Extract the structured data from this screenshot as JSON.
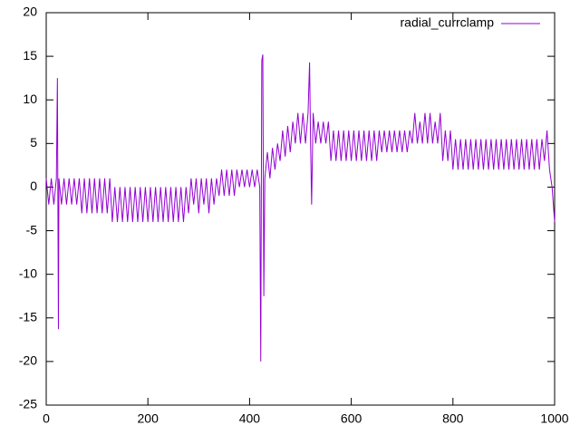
{
  "chart_data": {
    "type": "line",
    "x": [
      0,
      5,
      10,
      15,
      20,
      22,
      24,
      25,
      30,
      35,
      40,
      45,
      50,
      55,
      60,
      65,
      70,
      75,
      80,
      85,
      90,
      95,
      100,
      105,
      110,
      115,
      120,
      125,
      130,
      135,
      140,
      145,
      150,
      155,
      160,
      165,
      170,
      175,
      180,
      185,
      190,
      195,
      200,
      205,
      210,
      215,
      220,
      225,
      230,
      235,
      240,
      245,
      250,
      255,
      260,
      265,
      270,
      275,
      280,
      285,
      290,
      295,
      300,
      305,
      310,
      315,
      320,
      325,
      330,
      335,
      340,
      345,
      350,
      355,
      360,
      365,
      370,
      375,
      380,
      385,
      390,
      395,
      400,
      405,
      410,
      415,
      420,
      422,
      424,
      426,
      428,
      430,
      435,
      440,
      445,
      450,
      455,
      460,
      465,
      470,
      475,
      480,
      485,
      490,
      495,
      500,
      505,
      510,
      515,
      518,
      520,
      522,
      525,
      530,
      535,
      540,
      545,
      550,
      555,
      560,
      565,
      570,
      575,
      580,
      585,
      590,
      595,
      600,
      605,
      610,
      615,
      620,
      625,
      630,
      635,
      640,
      645,
      650,
      655,
      660,
      665,
      670,
      675,
      680,
      685,
      690,
      695,
      700,
      705,
      710,
      715,
      720,
      725,
      730,
      735,
      740,
      745,
      750,
      755,
      760,
      765,
      770,
      775,
      780,
      785,
      790,
      795,
      800,
      805,
      810,
      815,
      820,
      825,
      830,
      835,
      840,
      845,
      850,
      855,
      860,
      865,
      870,
      875,
      880,
      885,
      890,
      895,
      900,
      905,
      910,
      915,
      920,
      925,
      930,
      935,
      940,
      945,
      950,
      955,
      960,
      965,
      970,
      975,
      980,
      985,
      990,
      995,
      1000
    ],
    "series": [
      {
        "name": "radial_currclamp",
        "color": "#9400d3",
        "values": [
          1,
          -2,
          1,
          -2,
          1,
          12.5,
          -16.3,
          1,
          -2,
          1,
          -2,
          1,
          -2,
          1,
          -2,
          1,
          -3,
          1,
          -3,
          1,
          -3,
          1,
          -3,
          1,
          -3,
          1,
          -3,
          1,
          -4,
          0,
          -4,
          0,
          -4,
          0,
          -4,
          0,
          -4,
          0,
          -4,
          0,
          -4,
          0,
          -4,
          0,
          -4,
          0,
          -4,
          0,
          -4,
          0,
          -4,
          0,
          -4,
          0,
          -4,
          0,
          -4,
          0,
          -3,
          1,
          -2,
          1,
          -3,
          1,
          -2,
          1,
          -3,
          1,
          -2,
          1,
          -1,
          2,
          -1,
          2,
          -1,
          2,
          -1,
          2,
          0,
          2,
          0,
          2,
          0,
          2,
          0,
          2,
          0,
          -20,
          14.5,
          15.2,
          -12.5,
          1,
          4,
          1,
          4.5,
          2,
          5,
          3,
          6.5,
          3.5,
          7,
          4,
          7.5,
          5,
          8.5,
          5,
          8.5,
          5,
          8.5,
          14.3,
          5,
          -2,
          8.5,
          5,
          7.5,
          5,
          7.5,
          5,
          7.5,
          3,
          6.5,
          3,
          6.5,
          3,
          6.5,
          3,
          6.5,
          3,
          6.5,
          3,
          6.5,
          3,
          6.5,
          3,
          6.5,
          3,
          6.5,
          3,
          6.5,
          4,
          6.5,
          4,
          6.5,
          4,
          6.5,
          4,
          6.5,
          4,
          6.5,
          4,
          6.5,
          5,
          8.5,
          5,
          7.5,
          5,
          8.5,
          5,
          8.5,
          5,
          7.5,
          5,
          8.5,
          3,
          6.5,
          3,
          6.5,
          2,
          5.5,
          2,
          5.5,
          2,
          5.5,
          2,
          5.5,
          2,
          5.5,
          2,
          5.5,
          2,
          5.5,
          2,
          5.5,
          2,
          5.5,
          2,
          5.5,
          2,
          5.5,
          2,
          5.5,
          2,
          5.5,
          2,
          5.5,
          2,
          5.5,
          2,
          5.5,
          2,
          5.5,
          2,
          5.5,
          3,
          6.5,
          2,
          0,
          -4
        ]
      }
    ],
    "xlim": [
      0,
      1000
    ],
    "xticks": [
      0,
      200,
      400,
      600,
      800,
      1000
    ],
    "ylim": [
      -25,
      20
    ],
    "yticks": [
      -25,
      -20,
      -15,
      -10,
      -5,
      0,
      5,
      10,
      15,
      20
    ],
    "legend": "top-right"
  }
}
